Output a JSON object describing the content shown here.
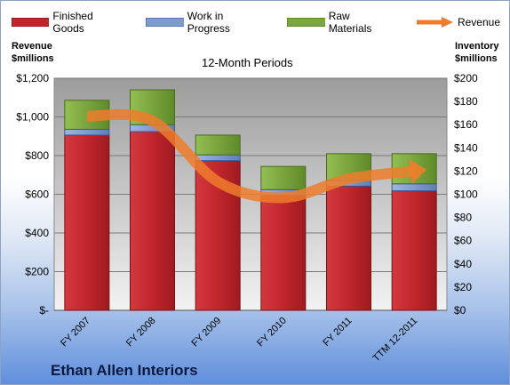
{
  "chart_data": {
    "type": "bar",
    "stacked": true,
    "title": "12-Month Periods",
    "company": "Ethan Allen Interiors",
    "categories": [
      "FY 2007",
      "FY 2008",
      "FY 2009",
      "FY 2010",
      "FY 2011",
      "TTM 12-2011"
    ],
    "series": [
      {
        "name": "Finished Goods",
        "axis": "right",
        "color": "#c0262c",
        "values": [
          151,
          154,
          129,
          99,
          107,
          103
        ]
      },
      {
        "name": "Work in Progress",
        "axis": "right",
        "color": "#7b9bd1",
        "values": [
          5,
          6,
          5,
          5,
          5,
          6
        ]
      },
      {
        "name": "Raw Materials",
        "axis": "right",
        "color": "#7aa83a",
        "values": [
          25,
          30,
          17,
          20,
          23,
          26
        ]
      },
      {
        "name": "Revenue",
        "type": "line",
        "axis": "left",
        "color": "#ee7d2b",
        "values": [
          1005,
          980,
          665,
          582,
          680,
          720
        ]
      }
    ],
    "ylabel_left": "Revenue\n$millions",
    "ylabel_right": "Inventory\n$millions",
    "ylim_left": [
      0,
      1200
    ],
    "ylim_right": [
      0,
      200
    ],
    "yticks_left": [
      "$-",
      "$200",
      "$400",
      "$600",
      "$800",
      "$1,000",
      "$1,200"
    ],
    "yticks_right": [
      "$0",
      "$20",
      "$40",
      "$60",
      "$80",
      "$100",
      "$120",
      "$140",
      "$160",
      "$180",
      "$200"
    ],
    "grid": true,
    "legend_position": "top"
  }
}
